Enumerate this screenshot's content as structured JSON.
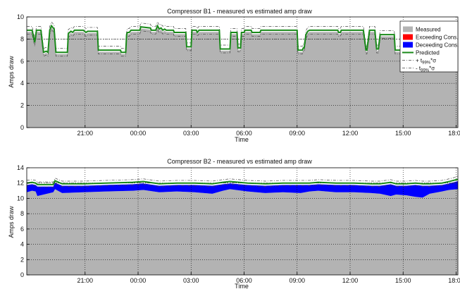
{
  "chart_data": [
    {
      "type": "area",
      "title": "Compressor B1 - measured vs estimated amp draw",
      "xlabel": "Time",
      "ylabel": "Amps draw",
      "ylim": [
        0,
        10
      ],
      "yticks": [
        "0",
        "2",
        "4",
        "6",
        "8",
        "10"
      ],
      "xlim": [
        0,
        24.4
      ],
      "x_tick_positions": [
        3.3,
        6.3,
        9.3,
        12.3,
        15.3,
        18.3,
        21.3,
        24.3
      ],
      "x_tick_labels": [
        "21:00",
        "00:00",
        "03:00",
        "06:00",
        "09:00",
        "12:00",
        "15:00",
        "18:00"
      ],
      "grid": "dotted",
      "reference_line": 8,
      "legend_placement": "top-right",
      "legend": [
        {
          "label": "Measured",
          "color": "#b3b3b3",
          "kind": "patch"
        },
        {
          "label": "Exceeding Cons.",
          "color": "#ff0000",
          "kind": "patch"
        },
        {
          "label": "Deceeding Cons.",
          "color": "#0000ff",
          "kind": "patch"
        },
        {
          "label": "Predicted",
          "color": "#1a8a1a",
          "kind": "line"
        },
        {
          "label": "+ t",
          "sub": "99%",
          "suffix": "*σ",
          "color": "#444444",
          "kind": "dashdot"
        },
        {
          "label": "- t",
          "sub": "99%",
          "suffix": "*σ",
          "color": "#444444",
          "kind": "dashdot"
        }
      ],
      "band": 0.35,
      "series": [
        {
          "name": "Predicted",
          "x": [
            0.0,
            0.3,
            0.45,
            0.55,
            0.8,
            0.95,
            1.1,
            1.2,
            1.3,
            1.4,
            1.55,
            1.65,
            2.3,
            2.35,
            2.5,
            2.6,
            2.7,
            3.2,
            3.35,
            3.45,
            4.0,
            4.05,
            5.3,
            5.35,
            5.6,
            5.65,
            5.7,
            5.8,
            5.9,
            6.4,
            6.45,
            7.0,
            7.05,
            7.3,
            7.4,
            7.5,
            7.6,
            7.7,
            7.8,
            7.9,
            8.3,
            8.35,
            9.0,
            9.05,
            9.3,
            9.35,
            9.6,
            9.65,
            9.75,
            9.8,
            10.9,
            10.95,
            11.5,
            11.55,
            11.9,
            11.95,
            12.1,
            12.15,
            12.3,
            12.35,
            12.7,
            12.75,
            13.2,
            13.25,
            14.1,
            14.15,
            15.3,
            15.35,
            15.6,
            15.65,
            15.7,
            15.8,
            15.9,
            16.0,
            17.3,
            17.35,
            17.6,
            17.65,
            17.75,
            17.8,
            17.95,
            18.0,
            18.05,
            18.1,
            18.2,
            18.3,
            19.0,
            19.05,
            19.2,
            19.25,
            19.4,
            19.5,
            19.6,
            19.7,
            19.8,
            19.9,
            20.0,
            20.1,
            20.8,
            20.85,
            21.3,
            21.35,
            22.0,
            22.05,
            23.5,
            23.55,
            23.8,
            23.85,
            24.4
          ],
          "y": [
            8.8,
            8.8,
            7.7,
            8.8,
            8.8,
            6.8,
            6.9,
            6.8,
            8.8,
            9.2,
            8.9,
            6.8,
            6.8,
            8.5,
            8.7,
            8.6,
            8.8,
            8.8,
            8.6,
            8.7,
            8.7,
            7.0,
            7.0,
            6.8,
            6.8,
            8.4,
            8.6,
            8.6,
            8.8,
            8.8,
            9.1,
            9.0,
            8.8,
            8.8,
            9.2,
            8.9,
            9.0,
            8.8,
            8.9,
            8.8,
            8.8,
            8.6,
            8.6,
            7.3,
            7.3,
            8.8,
            8.8,
            8.6,
            8.8,
            8.8,
            8.8,
            7.1,
            7.1,
            8.6,
            8.6,
            7.2,
            7.2,
            8.6,
            8.6,
            8.8,
            8.8,
            8.6,
            8.6,
            8.8,
            8.8,
            8.8,
            8.8,
            7.0,
            7.0,
            7.2,
            7.2,
            8.4,
            8.7,
            8.8,
            8.8,
            8.8,
            8.8,
            8.6,
            8.6,
            8.8,
            8.8,
            8.8,
            8.8,
            8.8,
            8.8,
            8.8,
            8.8,
            8.8,
            7.0,
            7.0,
            8.8,
            8.8,
            8.8,
            8.8,
            7.1,
            7.1,
            8.4,
            8.4,
            8.4,
            7.0,
            7.0,
            8.6,
            8.6,
            8.8,
            8.8,
            8.4,
            8.4,
            9.0,
            9.0
          ]
        }
      ]
    },
    {
      "type": "area",
      "title": "Compressor B2 - measured vs estimated amp draw",
      "xlabel": "Time",
      "ylabel": "Amps draw",
      "ylim": [
        0,
        14
      ],
      "yticks": [
        "0",
        "2",
        "4",
        "6",
        "8",
        "10",
        "12",
        "14"
      ],
      "xlim": [
        0,
        24.4
      ],
      "x_tick_positions": [
        3.3,
        6.3,
        9.3,
        12.3,
        15.3,
        18.3,
        21.3,
        24.3
      ],
      "x_tick_labels": [
        "21:00",
        "00:00",
        "03:00",
        "06:00",
        "09:00",
        "12:00",
        "15:00",
        "18:00"
      ],
      "grid": "dotted",
      "reference_line": 12,
      "series": [
        {
          "name": "Predicted",
          "x": [
            0.0,
            0.3,
            0.5,
            0.6,
            1.5,
            1.6,
            2.0,
            3.2,
            4.5,
            6.0,
            6.6,
            7.5,
            8.5,
            9.5,
            10.5,
            11.1,
            11.5,
            12.5,
            13.5,
            14.5,
            15.5,
            16.0,
            16.5,
            17.5,
            18.5,
            19.5,
            20.0,
            20.6,
            20.9,
            21.5,
            22.0,
            22.4,
            22.8,
            23.5,
            23.9,
            24.4
          ],
          "y": [
            12.0,
            12.1,
            12.0,
            11.8,
            11.8,
            12.3,
            11.9,
            11.9,
            12.0,
            12.1,
            12.2,
            11.9,
            12.0,
            12.0,
            11.9,
            12.1,
            12.2,
            12.0,
            11.9,
            12.0,
            12.0,
            12.0,
            12.1,
            12.0,
            12.0,
            11.9,
            11.9,
            12.1,
            11.9,
            11.9,
            12.0,
            11.9,
            11.9,
            12.0,
            12.2,
            12.5
          ]
        },
        {
          "name": "Measured",
          "x": [
            0.0,
            0.3,
            0.5,
            0.6,
            1.5,
            1.6,
            2.0,
            3.2,
            4.5,
            6.0,
            6.6,
            7.5,
            8.5,
            9.5,
            10.5,
            11.1,
            11.5,
            12.5,
            13.5,
            14.5,
            15.5,
            16.0,
            16.5,
            17.5,
            18.5,
            19.5,
            20.0,
            20.6,
            20.9,
            21.5,
            22.0,
            22.4,
            22.8,
            23.5,
            23.9,
            24.4
          ],
          "y": [
            10.8,
            11.0,
            10.9,
            10.3,
            10.8,
            11.2,
            10.7,
            10.8,
            10.9,
            11.0,
            11.1,
            10.8,
            10.9,
            10.8,
            10.6,
            11.0,
            11.2,
            10.9,
            10.7,
            10.8,
            10.7,
            10.9,
            11.0,
            10.8,
            10.8,
            10.7,
            10.6,
            10.3,
            10.5,
            10.4,
            10.2,
            10.1,
            10.6,
            10.9,
            11.1,
            11.2
          ]
        }
      ]
    }
  ]
}
